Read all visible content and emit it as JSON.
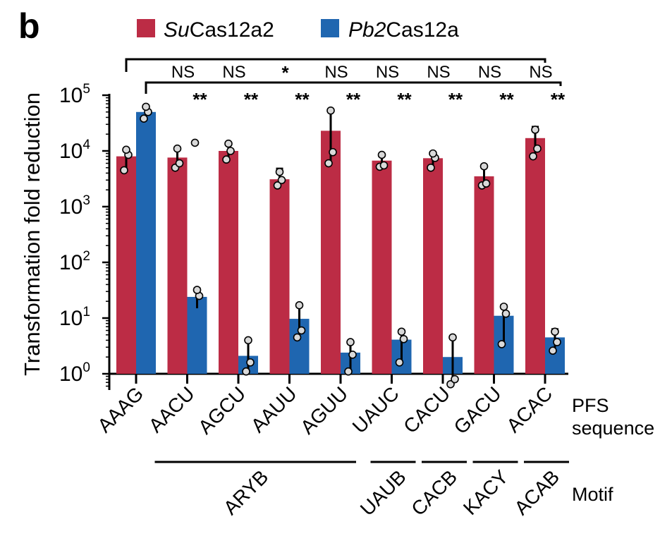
{
  "panel_label": "b",
  "colors": {
    "su": "#bc2c45",
    "pb": "#1f66b0",
    "dot_fill": "#d9d9d9"
  },
  "chart_data": {
    "type": "bar",
    "yscale": "log",
    "ylim": [
      1,
      100000
    ],
    "yticks": [
      {
        "base": "10",
        "exp": "0",
        "value": 1
      },
      {
        "base": "10",
        "exp": "1",
        "value": 10
      },
      {
        "base": "10",
        "exp": "2",
        "value": 100
      },
      {
        "base": "10",
        "exp": "3",
        "value": 1000
      },
      {
        "base": "10",
        "exp": "4",
        "value": 10000
      },
      {
        "base": "10",
        "exp": "5",
        "value": 100000
      }
    ],
    "ylabel": "Transformation fold reduction",
    "xlabel": "PFS sequence",
    "xlabel_lines": [
      "PFS",
      "sequence"
    ],
    "legend": {
      "placement": "top",
      "su_prefix": "Su",
      "su_suffix": "Cas12a2",
      "pb_prefix": "Pb2",
      "pb_suffix": "Cas12a"
    },
    "categories": [
      "AAAG",
      "AACU",
      "AGCU",
      "AAUU",
      "AGUU",
      "UAUC",
      "CACU",
      "GACU",
      "ACAC"
    ],
    "series": [
      {
        "name": "SuCas12a2",
        "values": [
          8000,
          7600,
          10000,
          3100,
          23000,
          6700,
          7400,
          3500,
          17000
        ],
        "err_low": [
          4500,
          5000,
          7000,
          2400,
          6000,
          5000,
          5000,
          2400,
          8000
        ],
        "err_high": [
          11000,
          11000,
          14000,
          4800,
          55000,
          8800,
          9500,
          5500,
          27000
        ],
        "points": [
          [
            4500,
            8500,
            10500
          ],
          [
            5000,
            6000,
            11000
          ],
          [
            7000,
            10000,
            13500
          ],
          [
            2400,
            3000,
            4200
          ],
          [
            6000,
            9500,
            53000
          ],
          [
            5200,
            5500,
            8500
          ],
          [
            5000,
            7500,
            9000
          ],
          [
            2400,
            2600,
            5300
          ],
          [
            8000,
            11000,
            24000
          ]
        ]
      },
      {
        "name": "Pb2Cas12a",
        "values": [
          50000,
          24,
          2.1,
          9.7,
          2.4,
          4.1,
          2,
          11,
          4.5
        ],
        "err_low": [
          37000,
          15,
          1.1,
          4.5,
          1.1,
          1.6,
          0.7,
          3.6,
          2.6
        ],
        "err_high": [
          65000,
          34,
          4,
          18,
          3.8,
          6,
          4.5,
          17,
          6.3
        ],
        "points": [
          [
            38000,
            50000,
            62000
          ],
          [
            14000,
            25,
            32
          ],
          [
            1.1,
            1.6,
            4
          ],
          [
            4.5,
            6,
            17
          ],
          [
            1.1,
            2.2,
            3.7
          ],
          [
            1.6,
            4.2,
            5.7
          ],
          [
            0.65,
            0.8,
            4.5
          ],
          [
            3.4,
            12,
            16
          ],
          [
            2.6,
            3.7,
            5.7
          ]
        ]
      }
    ],
    "significance": {
      "su_comparison": [
        "NS",
        "NS",
        "*",
        "NS",
        "NS",
        "NS",
        "NS",
        "NS"
      ],
      "pb_comparison": [
        "**",
        "**",
        "**",
        "**",
        "**",
        "**",
        "**",
        "**"
      ]
    },
    "motifs": [
      {
        "label": "ARYB",
        "from": 1,
        "to": 4
      },
      {
        "label": "UAUB",
        "from": 5,
        "to": 5
      },
      {
        "label": "CACB",
        "from": 6,
        "to": 6
      },
      {
        "label": "KACY",
        "from": 7,
        "to": 7
      },
      {
        "label": "ACAB",
        "from": 8,
        "to": 8
      }
    ],
    "motif_axis_label": "Motif"
  }
}
